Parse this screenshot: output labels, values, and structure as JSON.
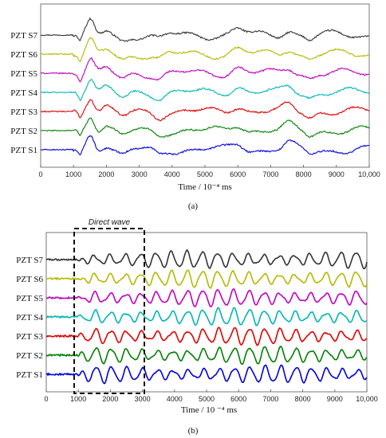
{
  "chart_data": [
    {
      "type": "line",
      "caption": "(a)",
      "xlabel": "Time / 10⁻⁴ ms",
      "xlim": [
        0,
        10000
      ],
      "x_ticks": [
        "0",
        "1000",
        "2000",
        "3000",
        "4000",
        "5000",
        "6000",
        "7000",
        "8000",
        "9000",
        "10,000"
      ],
      "series": [
        {
          "name": "PZT S7",
          "color": "#333333"
        },
        {
          "name": "PZT S6",
          "color": "#b5b800"
        },
        {
          "name": "PZT S5",
          "color": "#c000c0"
        },
        {
          "name": "PZT S4",
          "color": "#00b5b5"
        },
        {
          "name": "PZT S3",
          "color": "#e00000"
        },
        {
          "name": "PZT S2",
          "color": "#008000"
        },
        {
          "name": "PZT S1",
          "color": "#0000e0"
        }
      ]
    },
    {
      "type": "line",
      "caption": "(b)",
      "xlabel": "Time / 10 ⁻⁴ ms",
      "xlim": [
        0,
        10000
      ],
      "x_ticks": [
        "0",
        "1000",
        "2000",
        "3000",
        "4000",
        "5000",
        "6000",
        "7000",
        "8000",
        "9000",
        "10,000"
      ],
      "annotation": "Direct wave",
      "annotation_range": [
        1000,
        3100
      ],
      "series": [
        {
          "name": "PZT S7",
          "color": "#333333"
        },
        {
          "name": "PZT S6",
          "color": "#b5b800"
        },
        {
          "name": "PZT S5",
          "color": "#c000c0"
        },
        {
          "name": "PZT S4",
          "color": "#00b5b5"
        },
        {
          "name": "PZT S3",
          "color": "#e00000"
        },
        {
          "name": "PZT S2",
          "color": "#008000"
        },
        {
          "name": "PZT S1",
          "color": "#0000e0"
        }
      ]
    }
  ]
}
